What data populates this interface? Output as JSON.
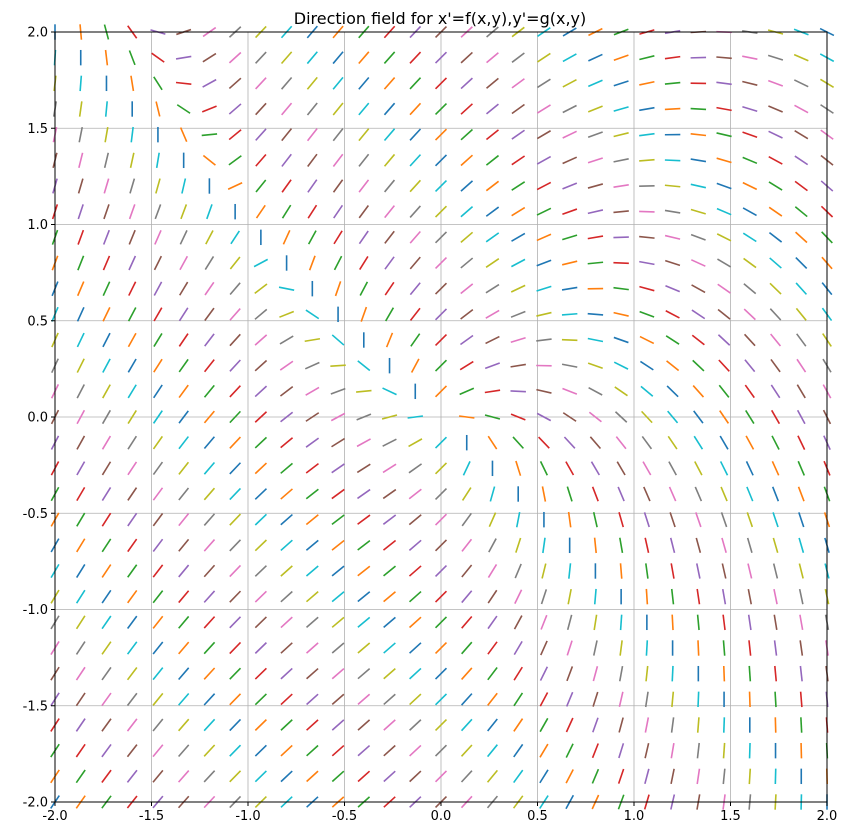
{
  "chart_data": {
    "type": "direction-field",
    "title": "Direction field for x'=f(x,y),y'=g(x,y)",
    "xlabel": "",
    "ylabel": "",
    "xlim": [
      -2.0,
      2.0
    ],
    "ylim": [
      -2.0,
      2.0
    ],
    "grid": true,
    "x_ticks": [
      "-2.0",
      "-1.5",
      "-1.0",
      "-0.5",
      "0.0",
      "0.5",
      "1.0",
      "1.5",
      "2.0"
    ],
    "y_ticks": [
      "-2.0",
      "-1.5",
      "-1.0",
      "-0.5",
      "0.0",
      "0.5",
      "1.0",
      "1.5",
      "2.0"
    ],
    "field": {
      "f": "x + y",
      "g": "y - x^2",
      "x_range": [
        -2.0,
        2.0
      ],
      "y_range": [
        -2.0,
        2.0
      ],
      "samples_per_axis": 31,
      "segment_length_data_units": 0.08
    },
    "colors": [
      "#1f77b4",
      "#ff7f0e",
      "#2ca02c",
      "#d62728",
      "#9467bd",
      "#8c564b",
      "#e377c2",
      "#7f7f7f",
      "#bcbd22",
      "#17becf"
    ]
  }
}
